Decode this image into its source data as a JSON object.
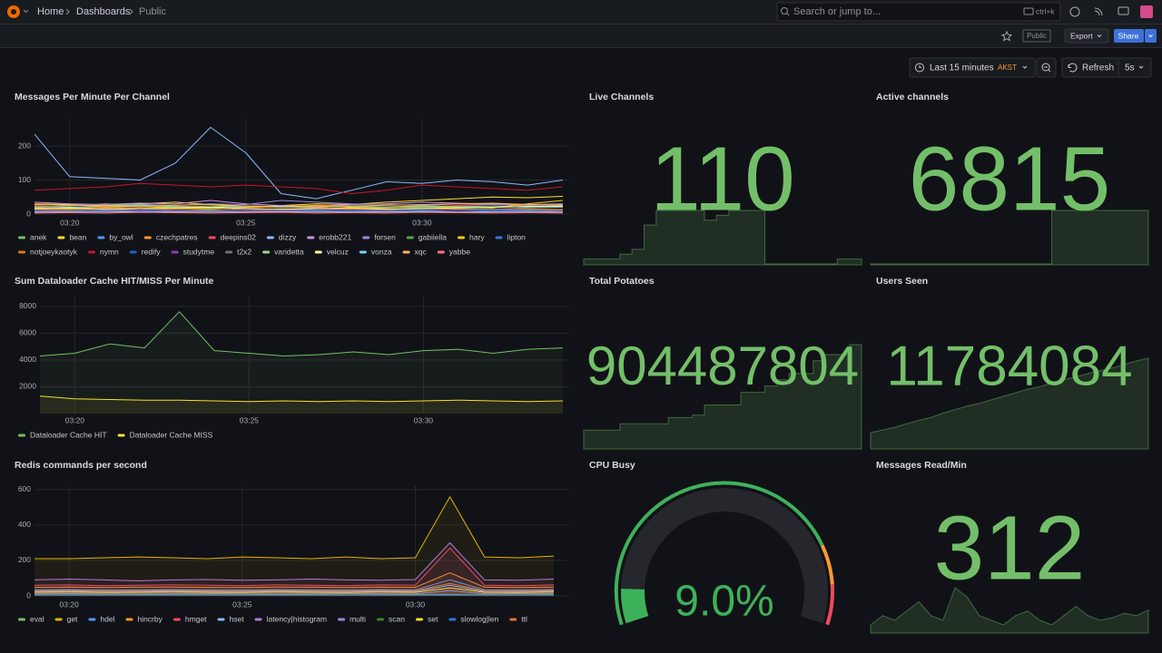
{
  "header": {
    "breadcrumbs": [
      "Home",
      "Dashboards",
      "Public"
    ],
    "search": "Search or jump to...",
    "shortcut": "ctrl+k"
  },
  "toolbar": {
    "badge": "Public",
    "export": "Export",
    "share": "Share",
    "time_range": "Last 15 minutes",
    "timezone": "AKST",
    "refresh": "Refresh",
    "interval": "5s"
  },
  "panels": [
    {
      "type": "line",
      "title": "Messages Per Minute Per Channel",
      "categories": [
        null,
        "03:20",
        null,
        null,
        null,
        null,
        "03:25",
        null,
        null,
        null,
        null,
        "03:30",
        null,
        null,
        null,
        null
      ],
      "ylim": [
        0,
        280
      ],
      "yticks": [
        0,
        100,
        200
      ],
      "grid": true,
      "fill": false,
      "series": [
        {
          "name": "anek",
          "color": "#73bf69",
          "values": [
            20,
            22,
            18,
            25,
            20,
            24,
            22,
            19,
            21,
            23,
            20,
            18,
            22,
            24,
            20,
            21
          ]
        },
        {
          "name": "bean",
          "color": "#fade2a",
          "values": [
            30,
            28,
            25,
            30,
            35,
            28,
            20,
            25,
            30,
            28,
            35,
            40,
            45,
            50,
            48,
            52
          ]
        },
        {
          "name": "by_owl",
          "color": "#5794f2",
          "values": [
            15,
            18,
            20,
            16,
            14,
            18,
            22,
            20,
            17,
            15,
            18,
            20,
            16,
            14,
            18,
            20
          ]
        },
        {
          "name": "czechpatres",
          "color": "#ff9830",
          "values": [
            10,
            12,
            8,
            10,
            14,
            12,
            10,
            9,
            11,
            13,
            10,
            8,
            12,
            14,
            10,
            11
          ]
        },
        {
          "name": "deepins02",
          "color": "#f2495c",
          "values": [
            25,
            20,
            22,
            28,
            24,
            20,
            18,
            22,
            26,
            24,
            20,
            22,
            25,
            28,
            24,
            22
          ]
        },
        {
          "name": "dizzy",
          "color": "#8ab8ff",
          "values": [
            235,
            110,
            105,
            100,
            150,
            255,
            180,
            60,
            45,
            70,
            95,
            90,
            100,
            95,
            85,
            100
          ]
        },
        {
          "name": "erobb221",
          "color": "#ca95e5",
          "values": [
            35,
            30,
            28,
            32,
            30,
            40,
            30,
            25,
            22,
            28,
            30,
            35,
            32,
            30,
            28,
            30
          ]
        },
        {
          "name": "forsen",
          "color": "#8f8fd9",
          "values": [
            20,
            25,
            30,
            28,
            26,
            30,
            28,
            40,
            35,
            30,
            28,
            25,
            30,
            28,
            26,
            28
          ]
        },
        {
          "name": "gabiiella",
          "color": "#56a64b",
          "values": [
            12,
            15,
            14,
            12,
            16,
            14,
            12,
            15,
            13,
            12,
            14,
            16,
            15,
            13,
            12,
            14
          ]
        },
        {
          "name": "hary",
          "color": "#f2cc0c",
          "values": [
            18,
            16,
            20,
            22,
            18,
            16,
            20,
            22,
            25,
            20,
            18,
            22,
            20,
            18,
            30,
            40
          ]
        },
        {
          "name": "lipton",
          "color": "#3274d9",
          "values": [
            8,
            10,
            12,
            9,
            8,
            10,
            12,
            11,
            9,
            8,
            10,
            12,
            11,
            9,
            8,
            10
          ]
        },
        {
          "name": "notjoeykaotyk",
          "color": "#e0752d",
          "values": [
            14,
            12,
            16,
            18,
            14,
            12,
            16,
            14,
            12,
            15,
            13,
            16,
            14,
            12,
            15,
            13
          ]
        },
        {
          "name": "nymn",
          "color": "#c4162a",
          "values": [
            70,
            75,
            80,
            90,
            85,
            80,
            85,
            80,
            75,
            60,
            70,
            85,
            80,
            75,
            70,
            80
          ]
        },
        {
          "name": "redify",
          "color": "#1f60c4",
          "values": [
            5,
            6,
            5,
            7,
            6,
            5,
            6,
            7,
            5,
            6,
            5,
            7,
            6,
            5,
            6,
            5
          ]
        },
        {
          "name": "studytme",
          "color": "#8f3bb8",
          "values": [
            10,
            9,
            11,
            12,
            10,
            9,
            11,
            10,
            12,
            11,
            10,
            9,
            11,
            12,
            10,
            9
          ]
        },
        {
          "name": "t2x2",
          "color": "#6e7079",
          "values": [
            4,
            5,
            4,
            6,
            5,
            4,
            5,
            6,
            4,
            5,
            4,
            6,
            5,
            4,
            5,
            4
          ]
        },
        {
          "name": "varidetta",
          "color": "#96d98d",
          "values": [
            22,
            20,
            24,
            26,
            22,
            20,
            24,
            22,
            20,
            23,
            21,
            24,
            22,
            20,
            23,
            21
          ]
        },
        {
          "name": "velcuz",
          "color": "#fff899",
          "values": [
            16,
            18,
            14,
            16,
            18,
            20,
            16,
            14,
            16,
            18,
            14,
            16,
            18,
            20,
            22,
            24
          ]
        },
        {
          "name": "vonza",
          "color": "#73d1f2",
          "values": [
            6,
            7,
            8,
            6,
            7,
            8,
            6,
            7,
            8,
            6,
            7,
            8,
            6,
            7,
            8,
            6
          ]
        },
        {
          "name": "xqc",
          "color": "#ffb357",
          "values": [
            28,
            26,
            24,
            22,
            26,
            28,
            24,
            22,
            20,
            24,
            26,
            28,
            30,
            32,
            28,
            26
          ]
        },
        {
          "name": "yabbe",
          "color": "#ff7383",
          "values": [
            3,
            4,
            3,
            5,
            4,
            3,
            4,
            5,
            3,
            4,
            3,
            5,
            4,
            3,
            4,
            3
          ]
        }
      ]
    },
    {
      "type": "line",
      "title": "Sum Dataloader Cache HIT/MISS Per Minute",
      "categories": [
        null,
        "03:20",
        null,
        null,
        null,
        null,
        "03:25",
        null,
        null,
        null,
        null,
        "03:30",
        null,
        null,
        null,
        null
      ],
      "ylim": [
        0,
        8800
      ],
      "yticks": [
        2000,
        4000,
        6000,
        8000
      ],
      "grid": true,
      "fill": true,
      "series": [
        {
          "name": "Dataloader Cache HIT",
          "color": "#73bf69",
          "values": [
            4300,
            4500,
            5200,
            4900,
            7600,
            4700,
            4500,
            4300,
            4400,
            4600,
            4400,
            4700,
            4800,
            4500,
            4800,
            4900
          ]
        },
        {
          "name": "Dataloader Cache MISS",
          "color": "#fade2a",
          "values": [
            1300,
            1100,
            1050,
            1000,
            1000,
            950,
            900,
            950,
            900,
            950,
            900,
            950,
            1000,
            950,
            900,
            950
          ]
        }
      ]
    },
    {
      "type": "line",
      "title": "Redis commands per second",
      "categories": [
        null,
        "03:20",
        null,
        null,
        null,
        null,
        "03:25",
        null,
        null,
        null,
        null,
        "03:30",
        null,
        null,
        null,
        null
      ],
      "ylim": [
        0,
        620
      ],
      "yticks": [
        0,
        200,
        400,
        600
      ],
      "grid": true,
      "fill": true,
      "series": [
        {
          "name": "eval",
          "color": "#73bf69",
          "values": [
            5,
            5,
            6,
            5,
            5,
            6,
            5,
            5,
            6,
            5,
            5,
            6,
            8,
            5,
            5,
            6
          ]
        },
        {
          "name": "get",
          "color": "#e0b400",
          "values": [
            210,
            210,
            215,
            220,
            215,
            210,
            220,
            215,
            210,
            220,
            210,
            215,
            560,
            220,
            215,
            225
          ]
        },
        {
          "name": "hdel",
          "color": "#5794f2",
          "values": [
            35,
            36,
            34,
            35,
            36,
            35,
            34,
            36,
            35,
            34,
            36,
            35,
            90,
            35,
            34,
            36
          ]
        },
        {
          "name": "hincrby",
          "color": "#ff9830",
          "values": [
            48,
            50,
            47,
            49,
            50,
            48,
            47,
            50,
            49,
            47,
            50,
            48,
            130,
            49,
            47,
            50
          ]
        },
        {
          "name": "hmget",
          "color": "#f2495c",
          "values": [
            60,
            62,
            58,
            60,
            62,
            60,
            58,
            62,
            60,
            58,
            62,
            60,
            270,
            60,
            58,
            62
          ]
        },
        {
          "name": "hset",
          "color": "#8ab8ff",
          "values": [
            25,
            26,
            24,
            25,
            26,
            25,
            24,
            26,
            25,
            24,
            26,
            25,
            60,
            25,
            24,
            26
          ]
        },
        {
          "name": "latency|histogram",
          "color": "#b877d9",
          "values": [
            90,
            95,
            90,
            85,
            90,
            92,
            88,
            90,
            95,
            90,
            88,
            92,
            300,
            90,
            88,
            95
          ]
        },
        {
          "name": "multi",
          "color": "#8f8fd9",
          "values": [
            12,
            13,
            12,
            11,
            12,
            13,
            12,
            11,
            12,
            13,
            12,
            11,
            30,
            12,
            13,
            12
          ]
        },
        {
          "name": "scan",
          "color": "#37872d",
          "values": [
            3,
            3,
            4,
            3,
            3,
            4,
            3,
            3,
            4,
            3,
            3,
            4,
            5,
            3,
            3,
            4
          ]
        },
        {
          "name": "set",
          "color": "#fade2a",
          "values": [
            20,
            21,
            19,
            20,
            21,
            20,
            19,
            21,
            20,
            19,
            21,
            20,
            45,
            20,
            19,
            21
          ]
        },
        {
          "name": "slowlog|len",
          "color": "#3274d9",
          "values": [
            2,
            2,
            2,
            2,
            2,
            2,
            2,
            2,
            2,
            2,
            2,
            2,
            3,
            2,
            2,
            2
          ]
        },
        {
          "name": "ttl",
          "color": "#e0752d",
          "values": [
            30,
            31,
            29,
            30,
            31,
            30,
            29,
            31,
            30,
            29,
            31,
            30,
            70,
            30,
            29,
            31
          ]
        }
      ]
    },
    {
      "type": "stat",
      "title": "Live Channels",
      "value": 110,
      "color": "#73bf69",
      "sparkline": [
        10,
        10,
        10,
        20,
        30,
        80,
        110,
        110,
        110,
        110,
        90,
        100,
        110,
        110,
        110,
        0,
        0,
        0,
        0,
        0,
        0,
        10,
        10,
        0
      ]
    },
    {
      "type": "stat",
      "title": "Active channels",
      "value": 6815,
      "color": "#73bf69",
      "sparkline": [
        0,
        0,
        0,
        0,
        0,
        0,
        0,
        0,
        0,
        0,
        0,
        0,
        0,
        0,
        0,
        6815,
        6815,
        6815,
        6815,
        6815,
        6815,
        6815,
        6815,
        6815
      ]
    },
    {
      "type": "stat",
      "title": "Total Potatoes",
      "value": 904487804,
      "color": "#73bf69",
      "sparkline": [
        904420000,
        904420000,
        904420000,
        904425000,
        904425000,
        904425000,
        904425000,
        904430000,
        904430000,
        904432000,
        904440000,
        904440000,
        904440000,
        904450000,
        904450000,
        904455000,
        904460000,
        904465000,
        904465000,
        904475000,
        904480000,
        904480000,
        904487804,
        904487804
      ]
    },
    {
      "type": "stat",
      "title": "Users Seen",
      "value": 11784084,
      "color": "#73bf69",
      "sparkline": [
        11700000,
        11703000,
        11706000,
        11710000,
        11714000,
        11717000,
        11722000,
        11726000,
        11730000,
        11733000,
        11737000,
        11741000,
        11745000,
        11749000,
        11752000,
        11756000,
        11760000,
        11763000,
        11767000,
        11770000,
        11773000,
        11777000,
        11781000,
        11784084
      ]
    },
    {
      "type": "gauge",
      "title": "CPU Busy",
      "value": 9.0,
      "value_label": "9.0%",
      "range": [
        0,
        100
      ],
      "color": "#3eb15b",
      "thresholds": [
        {
          "value": 80,
          "color": "#ff9830"
        },
        {
          "value": 90,
          "color": "#f2495c"
        }
      ]
    },
    {
      "type": "stat",
      "title": "Messages Read/Min",
      "value": 312,
      "color": "#73bf69",
      "sparkline": [
        280,
        300,
        290,
        310,
        330,
        300,
        290,
        360,
        340,
        300,
        290,
        280,
        300,
        310,
        290,
        280,
        300,
        320,
        300,
        290,
        295,
        305,
        300,
        312
      ]
    }
  ]
}
